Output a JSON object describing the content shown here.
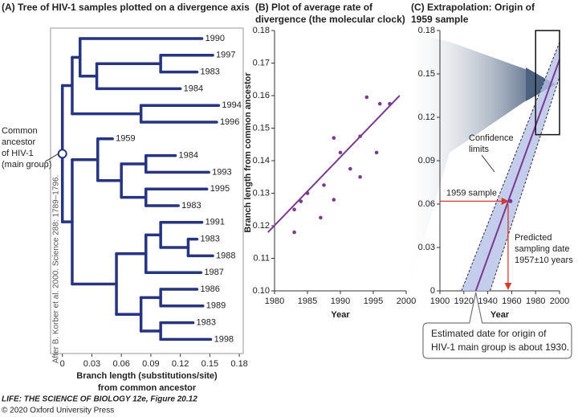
{
  "chart_data": [
    {
      "type": "tree",
      "title": "(A) Tree of HIV-1 samples plotted on a divergence axis",
      "xlabel": [
        "Branch length (substitutions/site)",
        "from common ancestor"
      ],
      "xlim": [
        -0.012,
        0.184
      ],
      "xticks": [
        0,
        0.03,
        0.06,
        0.09,
        0.12,
        0.15,
        0.18
      ],
      "color": "#27347f",
      "annotation": [
        "Common",
        "ancestor",
        "of HIV-1",
        "(main group)"
      ],
      "source": "After B. Korber et al. 2000. Science 288: 1789–1796.",
      "tree": {
        "x": 0,
        "children": [
          {
            "x": 0.01,
            "children": [
              {
                "x": 0.018,
                "children": [
                  {
                    "label": "1990",
                    "x": 0.142
                  },
                  {
                    "x": 0.035,
                    "children": [
                      {
                        "x": 0.1,
                        "children": [
                          {
                            "label": "1997",
                            "x": 0.153
                          },
                          {
                            "label": "1983",
                            "x": 0.137
                          }
                        ]
                      },
                      {
                        "label": "1984",
                        "x": 0.12
                      }
                    ]
                  }
                ]
              },
              {
                "x": 0.08,
                "children": [
                  {
                    "label": "1994",
                    "x": 0.159
                  },
                  {
                    "label": "1996",
                    "x": 0.157
                  }
                ]
              }
            ]
          },
          {
            "x": 0.01,
            "children": [
              {
                "x": 0.036,
                "children": [
                  {
                    "label": "1959",
                    "x": 0.051
                  },
                  {
                    "x": 0.06,
                    "children": [
                      {
                        "x": 0.085,
                        "children": [
                          {
                            "label": "1984",
                            "x": 0.115
                          },
                          {
                            "label": "1993",
                            "x": 0.149
                          }
                        ]
                      },
                      {
                        "x": 0.085,
                        "children": [
                          {
                            "label": "1995",
                            "x": 0.147
                          },
                          {
                            "label": "1983",
                            "x": 0.118
                          }
                        ]
                      }
                    ]
                  }
                ]
              },
              {
                "x": 0.055,
                "children": [
                  {
                    "x": 0.085,
                    "children": [
                      {
                        "x": 0.1,
                        "children": [
                          {
                            "label": "1991",
                            "x": 0.142
                          },
                          {
                            "x": 0.128,
                            "children": [
                              {
                                "label": "1983",
                                "x": 0.137
                              },
                              {
                                "label": "1988",
                                "x": 0.153
                              }
                            ]
                          }
                        ]
                      },
                      {
                        "label": "1987",
                        "x": 0.141
                      }
                    ]
                  },
                  {
                    "x": 0.08,
                    "children": [
                      {
                        "x": 0.1,
                        "children": [
                          {
                            "label": "1986",
                            "x": 0.137
                          },
                          {
                            "label": "1989",
                            "x": 0.143
                          }
                        ]
                      },
                      {
                        "x": 0.1,
                        "children": [
                          {
                            "label": "1983",
                            "x": 0.133
                          },
                          {
                            "label": "1998",
                            "x": 0.151
                          }
                        ]
                      }
                    ]
                  }
                ]
              }
            ]
          }
        ]
      }
    },
    {
      "type": "scatter",
      "title": [
        "(B) Plot of average rate of",
        "divergence (the molecular clock)"
      ],
      "xlabel": "Year",
      "ylabel": "Branch length from common ancestor",
      "xlim": [
        1980,
        2000
      ],
      "xticks": [
        1980,
        1985,
        1990,
        1995,
        2000
      ],
      "ylim": [
        0.1,
        0.18
      ],
      "yticks": [
        {
          "value": 0.1,
          "label": "0.10"
        },
        0.11,
        0.12,
        0.13,
        0.14,
        0.15,
        0.16,
        0.17,
        0.18
      ],
      "color": "#7a3b8f",
      "x": [
        1983,
        1983,
        1984,
        1985,
        1987,
        1987.5,
        1989,
        1989,
        1990,
        1991.5,
        1993,
        1993,
        1994,
        1995.5,
        1996,
        1997.5
      ],
      "values": [
        0.118,
        0.125,
        0.1275,
        0.13,
        0.1225,
        0.1325,
        0.147,
        0.128,
        0.1425,
        0.1375,
        0.135,
        0.1475,
        0.1595,
        0.1425,
        0.1575,
        0.1575
      ],
      "fit": {
        "x": [
          1979,
          1999
        ],
        "values": [
          0.118,
          0.16
        ]
      }
    },
    {
      "type": "extrapolation",
      "title": [
        "(C) Extrapolation: Origin of",
        "1959 sample"
      ],
      "xlabel": "Year",
      "xlim": [
        1900,
        2000
      ],
      "xticks": [
        1900,
        1920,
        1940,
        1960,
        1980,
        2000
      ],
      "ylim": [
        0,
        0.18
      ],
      "yticks": [
        0,
        0.03,
        0.06,
        0.09,
        0.12,
        0.15,
        0.18
      ],
      "color": "#7a3b8f",
      "band_color": "#b7c0e8",
      "arrow_color": "#d33a2c",
      "fit": {
        "x": [
          1930,
          2000
        ],
        "values": [
          0,
          0.16
        ]
      },
      "confidence_upper": {
        "x": [
          1918,
          2000
        ],
        "values": [
          0,
          0.172
        ]
      },
      "confidence_lower": {
        "x": [
          1942,
          2000
        ],
        "values": [
          0,
          0.148
        ]
      },
      "confidence_label": [
        "Confidence",
        "limits"
      ],
      "highlight": {
        "x": [
          1980,
          2000
        ],
        "values": [
          0.108,
          0.18
        ]
      },
      "sample": {
        "label": "1959 sample",
        "x": 1959,
        "y": 0.062
      },
      "predicted": {
        "label": [
          "Predicted",
          "sampling date",
          "1957±10 years"
        ],
        "x": 1957
      },
      "origin": {
        "label": [
          "Estimated date for origin of",
          "HIV-1 main group is about 1930."
        ],
        "x": 1930
      }
    }
  ],
  "footer": {
    "book": "LIFE: THE SCIENCE OF BIOLOGY 12e, Figure 20.12",
    "copyright": "© 2020 Oxford University Press"
  }
}
